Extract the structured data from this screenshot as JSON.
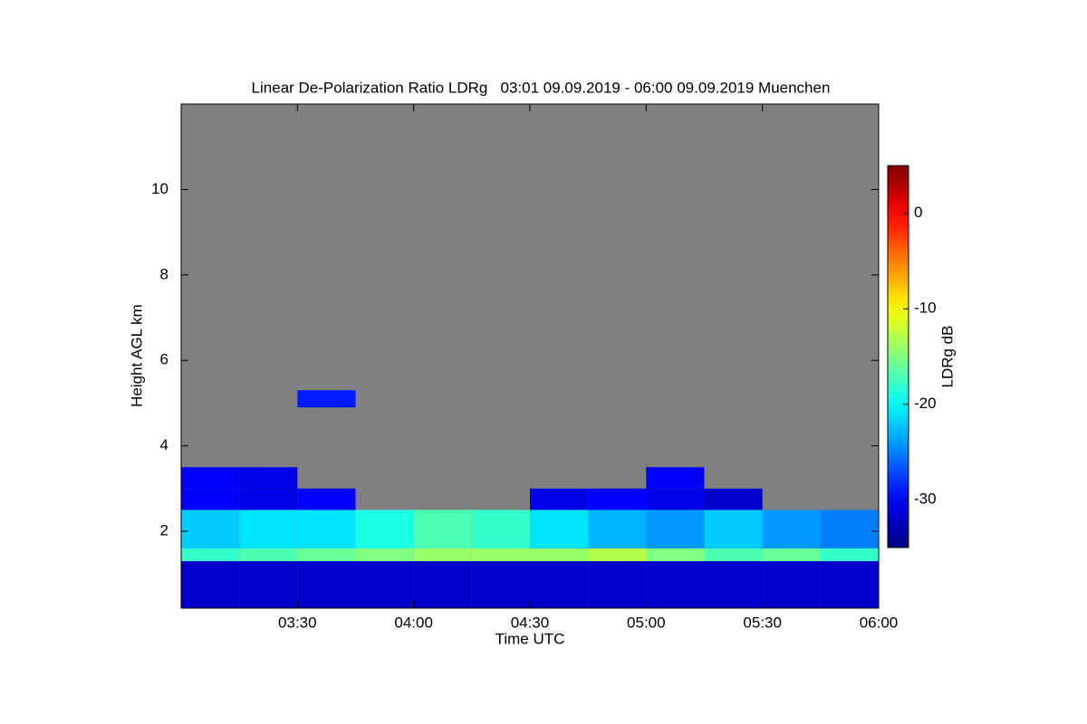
{
  "chart_data": {
    "type": "heatmap",
    "title": "Linear De-Polarization Ratio LDRg   03:01 09.09.2019 - 06:00 09.09.2019 Muenchen",
    "x_label": "Time UTC",
    "y_label": "Height AGL km",
    "colorbar_label": "LDRg dB",
    "xlim": [
      3.0,
      6.0
    ],
    "xticks": [
      {
        "value": 3.5,
        "label": "03:30"
      },
      {
        "value": 4.0,
        "label": "04:00"
      },
      {
        "value": 4.5,
        "label": "04:30"
      },
      {
        "value": 5.0,
        "label": "05:00"
      },
      {
        "value": 5.5,
        "label": "05:30"
      },
      {
        "value": 6.0,
        "label": "06:00"
      }
    ],
    "ylim": [
      0.2,
      12
    ],
    "yticks": [
      2,
      4,
      6,
      8,
      10
    ],
    "clim": [
      -35,
      5
    ],
    "cticks": [
      0,
      -10,
      -20,
      -30
    ],
    "colormap": "jet",
    "missing_color": "#808080",
    "x_edges": [
      3.0,
      3.25,
      3.5,
      3.75,
      4.0,
      4.25,
      4.5,
      4.75,
      5.0,
      5.25,
      5.5,
      5.75,
      6.0
    ],
    "y_edges": [
      0.2,
      1.3,
      1.6,
      2.5,
      3.0,
      3.5,
      4.9,
      5.3
    ],
    "values": [
      [
        -32,
        -32,
        -32,
        -32,
        -32,
        -32,
        -32,
        -32,
        -32,
        -32,
        -32,
        -32
      ],
      [
        -18,
        -17,
        -16,
        -15,
        -14,
        -14,
        -14,
        -13,
        -15,
        -17,
        -16,
        -18
      ],
      [
        -22,
        -21,
        -21,
        -19,
        -17,
        -18,
        -21,
        -23,
        -24,
        -22,
        -24,
        -25
      ],
      [
        -30,
        -31,
        -30,
        null,
        null,
        null,
        -31,
        -30,
        -31,
        -32,
        null,
        null
      ],
      [
        -30,
        -31,
        null,
        null,
        null,
        null,
        null,
        null,
        -30,
        null,
        null,
        null
      ],
      [
        null,
        null,
        null,
        null,
        null,
        null,
        null,
        null,
        null,
        null,
        null,
        null
      ],
      [
        null,
        null,
        -29,
        null,
        null,
        null,
        null,
        null,
        null,
        null,
        null,
        null
      ]
    ]
  }
}
